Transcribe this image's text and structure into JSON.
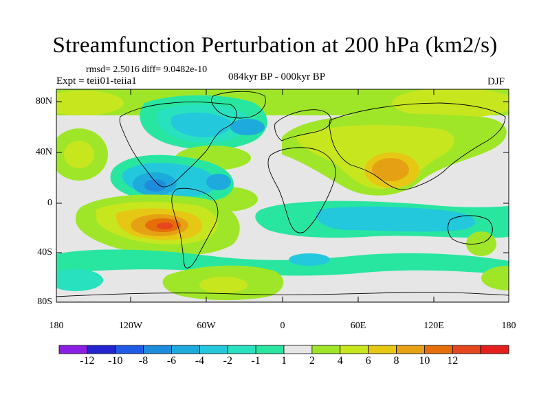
{
  "title": "Streamfunction Perturbation at 200 hPa (km2/s)",
  "stats": "rmsd= 2.5016 diff= 9.0482e-10",
  "experiment": "Expt = teii01-teiia1",
  "period": "084kyr BP - 000kyr BP",
  "season": "DJF",
  "lat_labels": [
    "80N",
    "40N",
    "0",
    "40S",
    "80S"
  ],
  "lon_labels": [
    "180",
    "120W",
    "60W",
    "0",
    "60E",
    "120E",
    "180"
  ],
  "colorbar": {
    "labels": [
      "-12",
      "-10",
      "-8",
      "-6",
      "-4",
      "-2",
      "-1",
      "1",
      "2",
      "4",
      "6",
      "8",
      "10",
      "12"
    ],
    "colors": [
      "#8c1ee6",
      "#2323d2",
      "#1e5ae6",
      "#1e8cdc",
      "#1eaadc",
      "#23c8dc",
      "#28e1be",
      "#28e6a0",
      "#e6e6e6",
      "#a0e628",
      "#c8e61e",
      "#e6c814",
      "#e6a014",
      "#e66e0a",
      "#e6461e",
      "#e61e1e"
    ]
  },
  "palette": {
    "neutral": "#e6e6e6",
    "g2": "#a0e628",
    "g4": "#c8e61e",
    "y6": "#e6c814",
    "o8": "#e6a014",
    "o10": "#e66e0a",
    "r12": "#e6461e",
    "c1": "#28e6a0",
    "c2": "#28e1be",
    "c4": "#23c8dc",
    "b6": "#1eaadc",
    "b8": "#1e8cdc"
  }
}
